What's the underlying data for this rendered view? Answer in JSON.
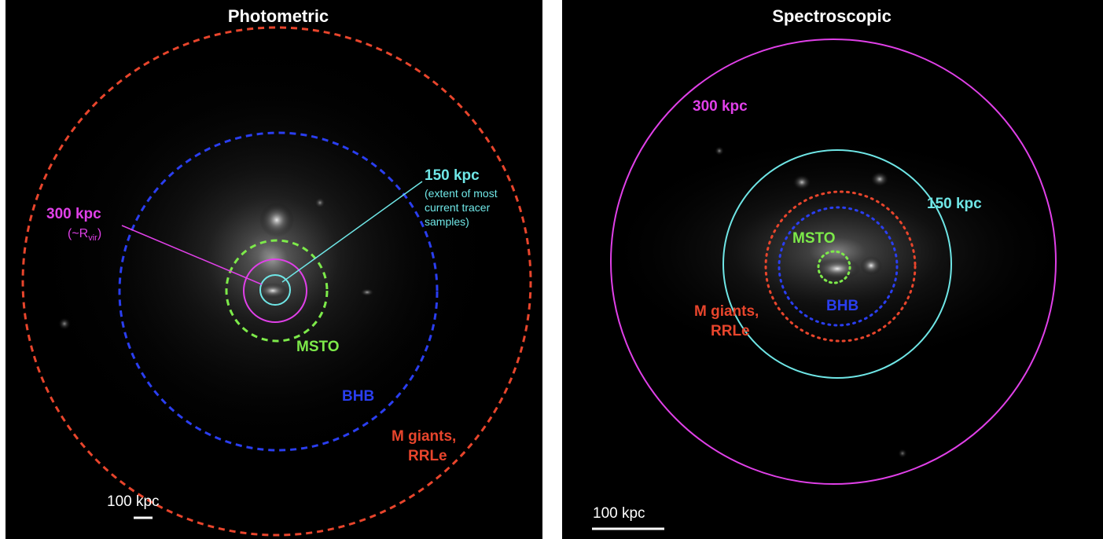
{
  "left_panel": {
    "title": "Photometric",
    "labels": {
      "kpc150": "150 kpc",
      "kpc150_note_1": "(extent of most",
      "kpc150_note_2": "current tracer",
      "kpc150_note_3": "samples)",
      "kpc300": "300 kpc",
      "kpc300_note_prefix": "(~R",
      "kpc300_note_sub": "vir",
      "kpc300_note_suffix": ")",
      "msto": "MSTO",
      "bhb": "BHB",
      "mgiants_1": "M giants,",
      "mgiants_2": "RRLe"
    },
    "scale_bar": "100 kpc"
  },
  "right_panel": {
    "title": "Spectroscopic",
    "labels": {
      "kpc300": "300 kpc",
      "kpc150": "150 kpc",
      "msto": "MSTO",
      "bhb": "BHB",
      "mgiants_1": "M giants,",
      "mgiants_2": "RRLe"
    },
    "scale_bar": "100 kpc"
  },
  "colors": {
    "red": "#e8452c",
    "blue": "#2a3ef0",
    "green": "#7dea4a",
    "magenta": "#e040e8",
    "cyan": "#6fe6e6",
    "white": "#ffffff"
  }
}
